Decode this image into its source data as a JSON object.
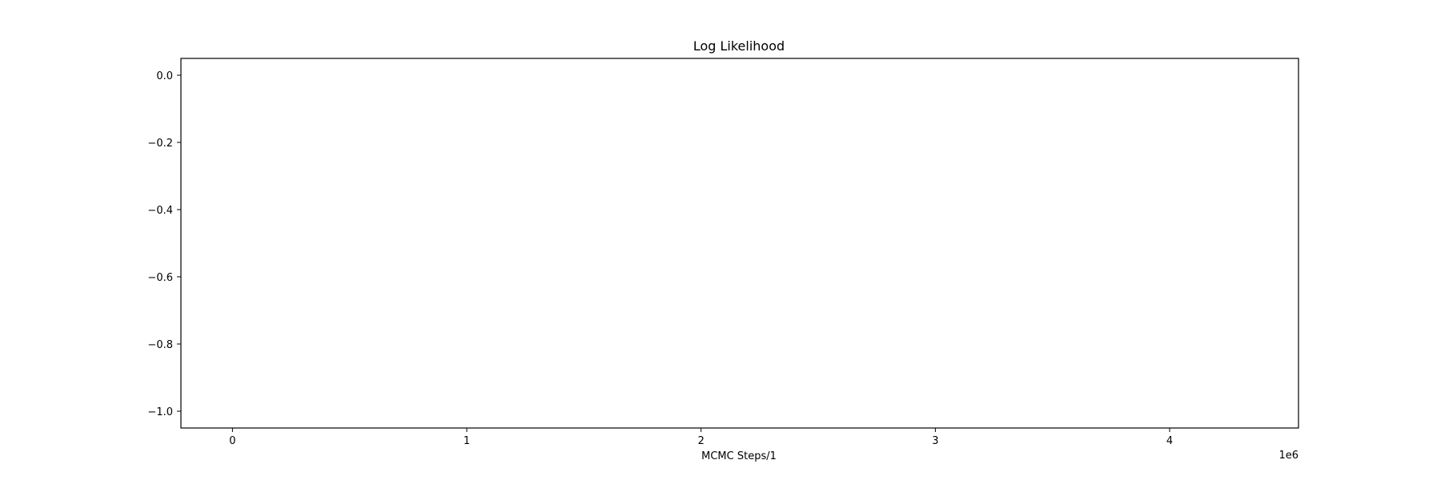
{
  "chart_data": {
    "type": "line",
    "title": "Log Likelihood",
    "xlabel": "MCMC Steps/1",
    "ylabel": "",
    "x_offset_label": "1e6",
    "xlim": [
      -0.22,
      4.55
    ],
    "ylim": [
      -1.05,
      0.05
    ],
    "x_ticks": [
      {
        "value": 0,
        "label": "0"
      },
      {
        "value": 1,
        "label": "1"
      },
      {
        "value": 2,
        "label": "2"
      },
      {
        "value": 3,
        "label": "3"
      },
      {
        "value": 4,
        "label": "4"
      }
    ],
    "y_ticks": [
      {
        "value": 0.0,
        "label": "0.0"
      },
      {
        "value": -0.2,
        "label": "−0.2"
      },
      {
        "value": -0.4,
        "label": "−0.4"
      },
      {
        "value": -0.6,
        "label": "−0.6"
      },
      {
        "value": -0.8,
        "label": "−0.8"
      },
      {
        "value": -1.0,
        "label": "−1.0"
      }
    ],
    "series": [],
    "grid": false,
    "legend": "none"
  }
}
